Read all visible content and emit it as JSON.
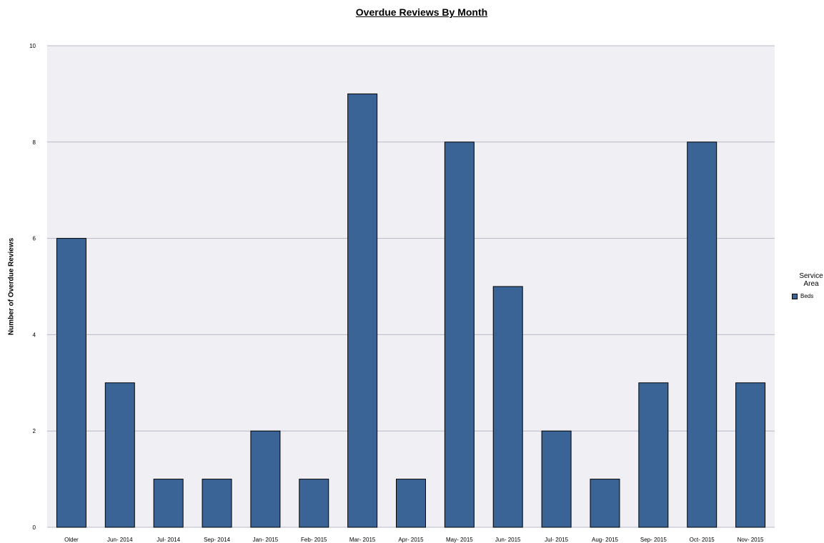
{
  "colors": {
    "bar": "#3a6496",
    "plot_bg": "#efeff4",
    "grid": "#b8b8c8"
  },
  "chart_data": {
    "type": "bar",
    "title": "Overdue Reviews By Month",
    "xlabel": "",
    "ylabel": "Number of Overdue Reviews",
    "categories": [
      "Older",
      "Jun- 2014",
      "Jul- 2014",
      "Sep- 2014",
      "Jan- 2015",
      "Feb- 2015",
      "Mar- 2015",
      "Apr- 2015",
      "May- 2015",
      "Jun- 2015",
      "Jul- 2015",
      "Aug- 2015",
      "Sep- 2015",
      "Oct- 2015",
      "Nov- 2015"
    ],
    "series": [
      {
        "name": "Beds",
        "values": [
          6,
          3,
          1,
          1,
          2,
          1,
          9,
          1,
          8,
          5,
          2,
          1,
          3,
          8,
          3
        ]
      }
    ],
    "ylim": [
      0,
      10
    ],
    "yticks": [
      0,
      2,
      4,
      6,
      8,
      10
    ],
    "grid": true,
    "legend": {
      "title_line1": "Service",
      "title_line2": "Area",
      "position": "right"
    }
  }
}
